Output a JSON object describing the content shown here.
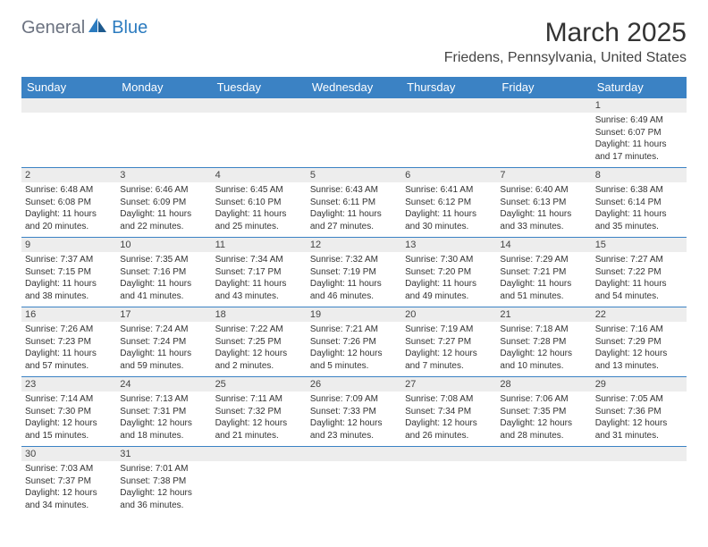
{
  "logo": {
    "part1": "General",
    "part2": "Blue"
  },
  "title": "March 2025",
  "location": "Friedens, Pennsylvania, United States",
  "colors": {
    "header_bg": "#3b82c4",
    "header_fg": "#ffffff",
    "daynum_bg": "#ededed",
    "border": "#3b82c4",
    "logo_gray": "#6b7280",
    "logo_blue": "#2b7bbf"
  },
  "day_headers": [
    "Sunday",
    "Monday",
    "Tuesday",
    "Wednesday",
    "Thursday",
    "Friday",
    "Saturday"
  ],
  "weeks": [
    [
      {
        "n": "",
        "sr": "",
        "ss": "",
        "dl": ""
      },
      {
        "n": "",
        "sr": "",
        "ss": "",
        "dl": ""
      },
      {
        "n": "",
        "sr": "",
        "ss": "",
        "dl": ""
      },
      {
        "n": "",
        "sr": "",
        "ss": "",
        "dl": ""
      },
      {
        "n": "",
        "sr": "",
        "ss": "",
        "dl": ""
      },
      {
        "n": "",
        "sr": "",
        "ss": "",
        "dl": ""
      },
      {
        "n": "1",
        "sr": "Sunrise: 6:49 AM",
        "ss": "Sunset: 6:07 PM",
        "dl": "Daylight: 11 hours and 17 minutes."
      }
    ],
    [
      {
        "n": "2",
        "sr": "Sunrise: 6:48 AM",
        "ss": "Sunset: 6:08 PM",
        "dl": "Daylight: 11 hours and 20 minutes."
      },
      {
        "n": "3",
        "sr": "Sunrise: 6:46 AM",
        "ss": "Sunset: 6:09 PM",
        "dl": "Daylight: 11 hours and 22 minutes."
      },
      {
        "n": "4",
        "sr": "Sunrise: 6:45 AM",
        "ss": "Sunset: 6:10 PM",
        "dl": "Daylight: 11 hours and 25 minutes."
      },
      {
        "n": "5",
        "sr": "Sunrise: 6:43 AM",
        "ss": "Sunset: 6:11 PM",
        "dl": "Daylight: 11 hours and 27 minutes."
      },
      {
        "n": "6",
        "sr": "Sunrise: 6:41 AM",
        "ss": "Sunset: 6:12 PM",
        "dl": "Daylight: 11 hours and 30 minutes."
      },
      {
        "n": "7",
        "sr": "Sunrise: 6:40 AM",
        "ss": "Sunset: 6:13 PM",
        "dl": "Daylight: 11 hours and 33 minutes."
      },
      {
        "n": "8",
        "sr": "Sunrise: 6:38 AM",
        "ss": "Sunset: 6:14 PM",
        "dl": "Daylight: 11 hours and 35 minutes."
      }
    ],
    [
      {
        "n": "9",
        "sr": "Sunrise: 7:37 AM",
        "ss": "Sunset: 7:15 PM",
        "dl": "Daylight: 11 hours and 38 minutes."
      },
      {
        "n": "10",
        "sr": "Sunrise: 7:35 AM",
        "ss": "Sunset: 7:16 PM",
        "dl": "Daylight: 11 hours and 41 minutes."
      },
      {
        "n": "11",
        "sr": "Sunrise: 7:34 AM",
        "ss": "Sunset: 7:17 PM",
        "dl": "Daylight: 11 hours and 43 minutes."
      },
      {
        "n": "12",
        "sr": "Sunrise: 7:32 AM",
        "ss": "Sunset: 7:19 PM",
        "dl": "Daylight: 11 hours and 46 minutes."
      },
      {
        "n": "13",
        "sr": "Sunrise: 7:30 AM",
        "ss": "Sunset: 7:20 PM",
        "dl": "Daylight: 11 hours and 49 minutes."
      },
      {
        "n": "14",
        "sr": "Sunrise: 7:29 AM",
        "ss": "Sunset: 7:21 PM",
        "dl": "Daylight: 11 hours and 51 minutes."
      },
      {
        "n": "15",
        "sr": "Sunrise: 7:27 AM",
        "ss": "Sunset: 7:22 PM",
        "dl": "Daylight: 11 hours and 54 minutes."
      }
    ],
    [
      {
        "n": "16",
        "sr": "Sunrise: 7:26 AM",
        "ss": "Sunset: 7:23 PM",
        "dl": "Daylight: 11 hours and 57 minutes."
      },
      {
        "n": "17",
        "sr": "Sunrise: 7:24 AM",
        "ss": "Sunset: 7:24 PM",
        "dl": "Daylight: 11 hours and 59 minutes."
      },
      {
        "n": "18",
        "sr": "Sunrise: 7:22 AM",
        "ss": "Sunset: 7:25 PM",
        "dl": "Daylight: 12 hours and 2 minutes."
      },
      {
        "n": "19",
        "sr": "Sunrise: 7:21 AM",
        "ss": "Sunset: 7:26 PM",
        "dl": "Daylight: 12 hours and 5 minutes."
      },
      {
        "n": "20",
        "sr": "Sunrise: 7:19 AM",
        "ss": "Sunset: 7:27 PM",
        "dl": "Daylight: 12 hours and 7 minutes."
      },
      {
        "n": "21",
        "sr": "Sunrise: 7:18 AM",
        "ss": "Sunset: 7:28 PM",
        "dl": "Daylight: 12 hours and 10 minutes."
      },
      {
        "n": "22",
        "sr": "Sunrise: 7:16 AM",
        "ss": "Sunset: 7:29 PM",
        "dl": "Daylight: 12 hours and 13 minutes."
      }
    ],
    [
      {
        "n": "23",
        "sr": "Sunrise: 7:14 AM",
        "ss": "Sunset: 7:30 PM",
        "dl": "Daylight: 12 hours and 15 minutes."
      },
      {
        "n": "24",
        "sr": "Sunrise: 7:13 AM",
        "ss": "Sunset: 7:31 PM",
        "dl": "Daylight: 12 hours and 18 minutes."
      },
      {
        "n": "25",
        "sr": "Sunrise: 7:11 AM",
        "ss": "Sunset: 7:32 PM",
        "dl": "Daylight: 12 hours and 21 minutes."
      },
      {
        "n": "26",
        "sr": "Sunrise: 7:09 AM",
        "ss": "Sunset: 7:33 PM",
        "dl": "Daylight: 12 hours and 23 minutes."
      },
      {
        "n": "27",
        "sr": "Sunrise: 7:08 AM",
        "ss": "Sunset: 7:34 PM",
        "dl": "Daylight: 12 hours and 26 minutes."
      },
      {
        "n": "28",
        "sr": "Sunrise: 7:06 AM",
        "ss": "Sunset: 7:35 PM",
        "dl": "Daylight: 12 hours and 28 minutes."
      },
      {
        "n": "29",
        "sr": "Sunrise: 7:05 AM",
        "ss": "Sunset: 7:36 PM",
        "dl": "Daylight: 12 hours and 31 minutes."
      }
    ],
    [
      {
        "n": "30",
        "sr": "Sunrise: 7:03 AM",
        "ss": "Sunset: 7:37 PM",
        "dl": "Daylight: 12 hours and 34 minutes."
      },
      {
        "n": "31",
        "sr": "Sunrise: 7:01 AM",
        "ss": "Sunset: 7:38 PM",
        "dl": "Daylight: 12 hours and 36 minutes."
      },
      {
        "n": "",
        "sr": "",
        "ss": "",
        "dl": ""
      },
      {
        "n": "",
        "sr": "",
        "ss": "",
        "dl": ""
      },
      {
        "n": "",
        "sr": "",
        "ss": "",
        "dl": ""
      },
      {
        "n": "",
        "sr": "",
        "ss": "",
        "dl": ""
      },
      {
        "n": "",
        "sr": "",
        "ss": "",
        "dl": ""
      }
    ]
  ]
}
